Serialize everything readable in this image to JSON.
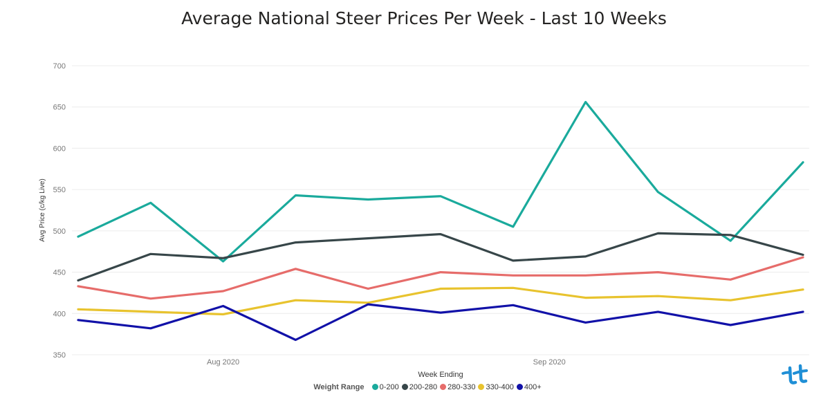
{
  "chart_data": {
    "type": "line",
    "title": "Average National Steer Prices Per Week - Last 10 Weeks",
    "xlabel": "Week Ending",
    "ylabel": "Avg Price (c/kg Live)",
    "ylim": [
      350,
      700
    ],
    "yticks": [
      350,
      400,
      450,
      500,
      550,
      600,
      650,
      700
    ],
    "xtick_labels": [
      {
        "label": "Aug 2020",
        "at_index": 2
      },
      {
        "label": "Sep 2020",
        "at_index": 6.5
      }
    ],
    "grid": true,
    "legend_position": "bottom",
    "legend_title": "Weight Range",
    "series": [
      {
        "name": "0-200",
        "color": "#1aaa9c",
        "values": [
          493,
          534,
          463,
          543,
          538,
          542,
          505,
          656,
          547,
          488,
          583
        ]
      },
      {
        "name": "200-280",
        "color": "#374649",
        "values": [
          440,
          472,
          467,
          486,
          491,
          496,
          464,
          469,
          497,
          495,
          471
        ]
      },
      {
        "name": "280-330",
        "color": "#e66c6a",
        "values": [
          433,
          418,
          427,
          454,
          430,
          450,
          446,
          446,
          450,
          441,
          468
        ]
      },
      {
        "name": "330-400",
        "color": "#e8c32e",
        "values": [
          405,
          402,
          399,
          416,
          413,
          430,
          431,
          419,
          421,
          416,
          429
        ]
      },
      {
        "name": "400+",
        "color": "#1111a8",
        "values": [
          392,
          382,
          409,
          368,
          411,
          401,
          410,
          389,
          402,
          386,
          402
        ]
      }
    ]
  }
}
